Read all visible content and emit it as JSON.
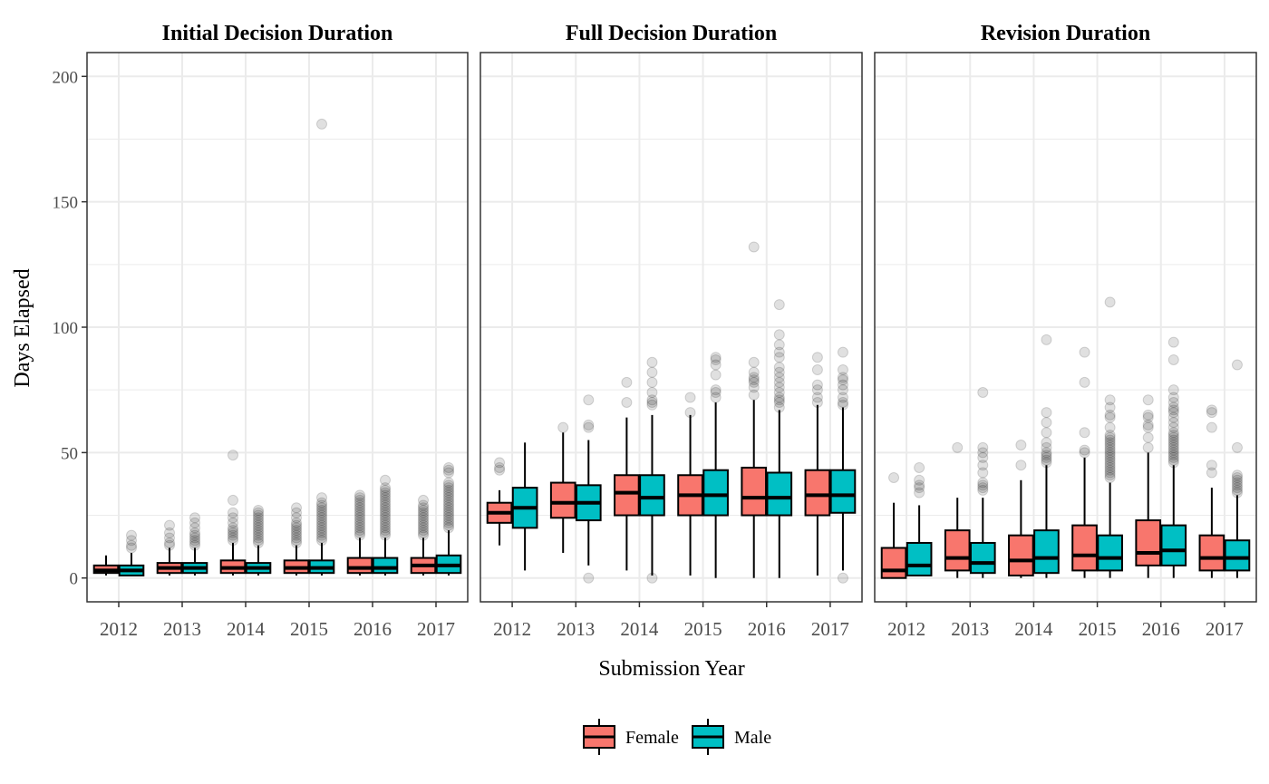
{
  "chart_data": {
    "type": "boxplot",
    "xlabel": "Submission Year",
    "ylabel": "Days Elapsed",
    "ylim": [
      -9.5,
      209.5
    ],
    "yticks": [
      0,
      50,
      100,
      150,
      200
    ],
    "categories": [
      "2012",
      "2013",
      "2014",
      "2015",
      "2016",
      "2017"
    ],
    "groups": [
      "Female",
      "Male"
    ],
    "colors": {
      "Female": "#F8766D",
      "Male": "#00BFC4",
      "outlier": "#000000",
      "grid": "#ebebeb",
      "border": "#333333"
    },
    "grid": true,
    "legend": {
      "position": "bottom",
      "entries": [
        "Female",
        "Male"
      ]
    },
    "panels": [
      {
        "title": "Initial Decision Duration",
        "boxes": [
          {
            "year": "2012",
            "group": "Female",
            "min": 1,
            "q1": 2,
            "median": 3,
            "q3": 5,
            "max": 9,
            "outliers": []
          },
          {
            "year": "2012",
            "group": "Male",
            "min": 1,
            "q1": 1,
            "median": 3,
            "q3": 5,
            "max": 10,
            "outliers": [
              12,
              13,
              15,
              17
            ]
          },
          {
            "year": "2013",
            "group": "Female",
            "min": 1,
            "q1": 2,
            "median": 4,
            "q3": 6,
            "max": 12,
            "outliers": [
              13,
              14,
              16,
              18,
              21
            ]
          },
          {
            "year": "2013",
            "group": "Male",
            "min": 1,
            "q1": 2,
            "median": 4,
            "q3": 6,
            "max": 12,
            "outliers": [
              13,
              14,
              15,
              16,
              17,
              18,
              20,
              22,
              24
            ]
          },
          {
            "year": "2014",
            "group": "Female",
            "min": 1,
            "q1": 2,
            "median": 4,
            "q3": 7,
            "max": 14,
            "outliers": [
              15,
              16,
              17,
              18,
              19,
              20,
              22,
              24,
              26,
              31,
              49
            ]
          },
          {
            "year": "2014",
            "group": "Male",
            "min": 1,
            "q1": 2,
            "median": 4,
            "q3": 6,
            "max": 13,
            "outliers": [
              14,
              15,
              16,
              17,
              18,
              19,
              20,
              21,
              22,
              23,
              24,
              25,
              26,
              27
            ]
          },
          {
            "year": "2015",
            "group": "Female",
            "min": 1,
            "q1": 2,
            "median": 4,
            "q3": 7,
            "max": 13,
            "outliers": [
              14,
              15,
              16,
              17,
              18,
              19,
              20,
              21,
              22,
              24,
              26,
              28
            ]
          },
          {
            "year": "2015",
            "group": "Male",
            "min": 1,
            "q1": 2,
            "median": 4,
            "q3": 7,
            "max": 14,
            "outliers": [
              15,
              16,
              17,
              18,
              19,
              20,
              21,
              22,
              23,
              24,
              25,
              26,
              27,
              28,
              29,
              30,
              32,
              181
            ]
          },
          {
            "year": "2016",
            "group": "Female",
            "min": 1,
            "q1": 2,
            "median": 4,
            "q3": 8,
            "max": 16,
            "outliers": [
              17,
              18,
              19,
              20,
              21,
              22,
              23,
              24,
              25,
              26,
              27,
              28,
              29,
              30,
              31,
              32,
              33
            ]
          },
          {
            "year": "2016",
            "group": "Male",
            "min": 1,
            "q1": 2,
            "median": 4,
            "q3": 8,
            "max": 16,
            "outliers": [
              17,
              18,
              19,
              20,
              21,
              22,
              23,
              24,
              25,
              26,
              27,
              28,
              29,
              30,
              31,
              32,
              33,
              34,
              35,
              36,
              39
            ]
          },
          {
            "year": "2017",
            "group": "Female",
            "min": 1,
            "q1": 2,
            "median": 5,
            "q3": 8,
            "max": 16,
            "outliers": [
              17,
              18,
              19,
              20,
              21,
              22,
              23,
              24,
              25,
              26,
              27,
              28,
              29,
              31
            ]
          },
          {
            "year": "2017",
            "group": "Male",
            "min": 1,
            "q1": 2,
            "median": 5,
            "q3": 9,
            "max": 19,
            "outliers": [
              20,
              21,
              22,
              23,
              24,
              25,
              26,
              27,
              28,
              29,
              30,
              31,
              32,
              33,
              34,
              35,
              36,
              37,
              38,
              42,
              43,
              44
            ]
          }
        ]
      },
      {
        "title": "Full Decision Duration",
        "boxes": [
          {
            "year": "2012",
            "group": "Female",
            "min": 13,
            "q1": 22,
            "median": 26,
            "q3": 30,
            "max": 35,
            "outliers": [
              43,
              44,
              46
            ]
          },
          {
            "year": "2012",
            "group": "Male",
            "min": 3,
            "q1": 20,
            "median": 28,
            "q3": 36,
            "max": 54,
            "outliers": []
          },
          {
            "year": "2013",
            "group": "Female",
            "min": 10,
            "q1": 24,
            "median": 30,
            "q3": 38,
            "max": 58,
            "outliers": [
              60
            ]
          },
          {
            "year": "2013",
            "group": "Male",
            "min": 5,
            "q1": 23,
            "median": 30,
            "q3": 37,
            "max": 55,
            "outliers": [
              0,
              60,
              61,
              71
            ]
          },
          {
            "year": "2014",
            "group": "Female",
            "min": 3,
            "q1": 25,
            "median": 34,
            "q3": 41,
            "max": 64,
            "outliers": [
              70,
              78
            ]
          },
          {
            "year": "2014",
            "group": "Male",
            "min": 1,
            "q1": 25,
            "median": 32,
            "q3": 41,
            "max": 65,
            "outliers": [
              0,
              69,
              70,
              71,
              74,
              78,
              82,
              86
            ]
          },
          {
            "year": "2015",
            "group": "Female",
            "min": 1,
            "q1": 25,
            "median": 33,
            "q3": 41,
            "max": 65,
            "outliers": [
              66,
              72
            ]
          },
          {
            "year": "2015",
            "group": "Male",
            "min": 0,
            "q1": 25,
            "median": 33,
            "q3": 43,
            "max": 70,
            "outliers": [
              72,
              74,
              75,
              81,
              85,
              87,
              88
            ]
          },
          {
            "year": "2016",
            "group": "Female",
            "min": 0,
            "q1": 25,
            "median": 32,
            "q3": 44,
            "max": 71,
            "outliers": [
              73,
              76,
              78,
              79,
              80,
              82,
              86,
              132
            ]
          },
          {
            "year": "2016",
            "group": "Male",
            "min": 0,
            "q1": 25,
            "median": 32,
            "q3": 42,
            "max": 67,
            "outliers": [
              68,
              70,
              71,
              72,
              74,
              76,
              78,
              80,
              82,
              84,
              88,
              90,
              93,
              97,
              109
            ]
          },
          {
            "year": "2017",
            "group": "Female",
            "min": 1,
            "q1": 25,
            "median": 33,
            "q3": 43,
            "max": 69,
            "outliers": [
              70,
              72,
              75,
              77,
              83,
              88
            ]
          },
          {
            "year": "2017",
            "group": "Male",
            "min": 3,
            "q1": 26,
            "median": 33,
            "q3": 43,
            "max": 68,
            "outliers": [
              0,
              69,
              70,
              72,
              75,
              77,
              79,
              80,
              83,
              90
            ]
          }
        ]
      },
      {
        "title": "Revision Duration",
        "boxes": [
          {
            "year": "2012",
            "group": "Female",
            "min": 0,
            "q1": 0,
            "median": 3,
            "q3": 12,
            "max": 30,
            "outliers": [
              40
            ]
          },
          {
            "year": "2012",
            "group": "Male",
            "min": 1,
            "q1": 1,
            "median": 5,
            "q3": 14,
            "max": 29,
            "outliers": [
              34,
              36,
              37,
              39,
              44
            ]
          },
          {
            "year": "2013",
            "group": "Female",
            "min": 0,
            "q1": 3,
            "median": 8,
            "q3": 19,
            "max": 32,
            "outliers": [
              52
            ]
          },
          {
            "year": "2013",
            "group": "Male",
            "min": 0,
            "q1": 2,
            "median": 6,
            "q3": 14,
            "max": 32,
            "outliers": [
              35,
              36,
              37,
              38,
              42,
              45,
              48,
              50,
              52,
              74
            ]
          },
          {
            "year": "2014",
            "group": "Female",
            "min": 0,
            "q1": 1,
            "median": 7,
            "q3": 17,
            "max": 39,
            "outliers": [
              45,
              53
            ]
          },
          {
            "year": "2014",
            "group": "Male",
            "min": 0,
            "q1": 2,
            "median": 8,
            "q3": 19,
            "max": 45,
            "outliers": [
              46,
              47,
              48,
              49,
              50,
              52,
              54,
              58,
              62,
              66,
              95
            ]
          },
          {
            "year": "2015",
            "group": "Female",
            "min": 0,
            "q1": 3,
            "median": 9,
            "q3": 21,
            "max": 48,
            "outliers": [
              50,
              51,
              58,
              78,
              90
            ]
          },
          {
            "year": "2015",
            "group": "Male",
            "min": 0,
            "q1": 3,
            "median": 8,
            "q3": 17,
            "max": 38,
            "outliers": [
              40,
              41,
              42,
              43,
              44,
              45,
              46,
              47,
              48,
              49,
              50,
              51,
              52,
              53,
              54,
              55,
              56,
              57,
              60,
              64,
              65,
              68,
              71,
              110
            ]
          },
          {
            "year": "2016",
            "group": "Female",
            "min": 0,
            "q1": 5,
            "median": 10,
            "q3": 23,
            "max": 50,
            "outliers": [
              52,
              56,
              60,
              61,
              64,
              65,
              71
            ]
          },
          {
            "year": "2016",
            "group": "Male",
            "min": 0,
            "q1": 5,
            "median": 11,
            "q3": 21,
            "max": 45,
            "outliers": [
              46,
              47,
              48,
              49,
              50,
              51,
              52,
              53,
              54,
              55,
              56,
              57,
              58,
              60,
              62,
              64,
              66,
              67,
              68,
              70,
              72,
              75,
              87,
              94
            ]
          },
          {
            "year": "2017",
            "group": "Female",
            "min": 0,
            "q1": 3,
            "median": 8,
            "q3": 17,
            "max": 36,
            "outliers": [
              42,
              45,
              60,
              66,
              67
            ]
          },
          {
            "year": "2017",
            "group": "Male",
            "min": 0,
            "q1": 3,
            "median": 8,
            "q3": 15,
            "max": 33,
            "outliers": [
              34,
              35,
              36,
              37,
              38,
              39,
              40,
              41,
              52,
              85
            ]
          }
        ]
      }
    ]
  }
}
